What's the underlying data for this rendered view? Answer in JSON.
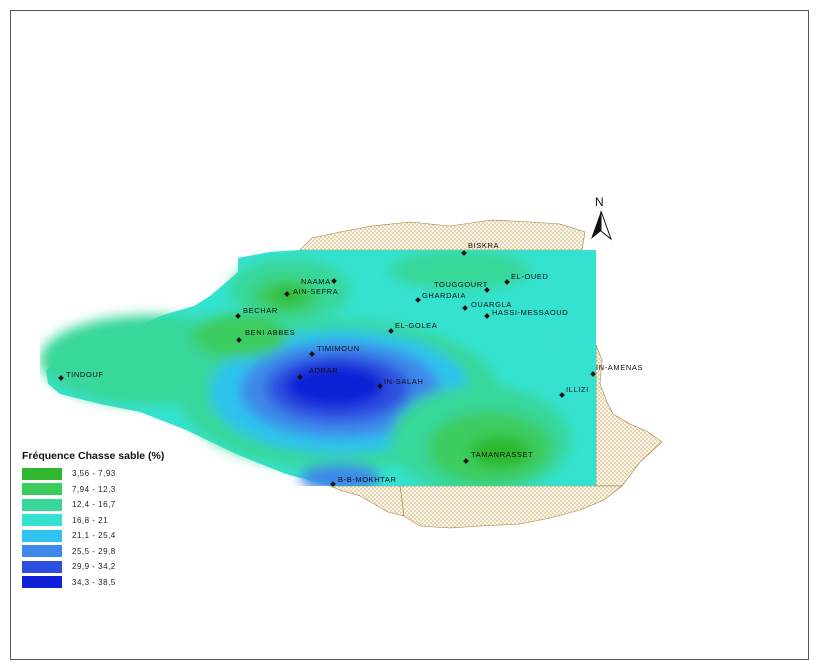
{
  "legend": {
    "title": "Fréquence Chasse sable (%)",
    "classes": [
      {
        "label": "3,56 - 7,93",
        "color": "#2fb82f"
      },
      {
        "label": "7,94 - 12,3",
        "color": "#3ccc5e"
      },
      {
        "label": "12,4 - 16,7",
        "color": "#38d79a"
      },
      {
        "label": "16,8 - 21",
        "color": "#34e2cf"
      },
      {
        "label": "21,1 - 25,4",
        "color": "#2ec3ee"
      },
      {
        "label": "25,5 - 29,8",
        "color": "#3d88e9"
      },
      {
        "label": "29,9 - 34,2",
        "color": "#2d4fe0"
      },
      {
        "label": "34,3 - 38,5",
        "color": "#1120d6"
      }
    ]
  },
  "north_arrow": {
    "letter": "N",
    "icon": "north-arrow-icon"
  },
  "cities": [
    {
      "name": "BISKRA"
    },
    {
      "name": "EL-OUED"
    },
    {
      "name": "TOUGGOURT"
    },
    {
      "name": "NAAMA"
    },
    {
      "name": "AIN-SEFRA"
    },
    {
      "name": "GHARDAIA"
    },
    {
      "name": "OUARGLA"
    },
    {
      "name": "HASSI-MESSAOUD"
    },
    {
      "name": "BECHAR"
    },
    {
      "name": "EL-GOLEA"
    },
    {
      "name": "BENI ABBES"
    },
    {
      "name": "TIMIMOUN"
    },
    {
      "name": "IN-AMENAS"
    },
    {
      "name": "TINDOUF"
    },
    {
      "name": "ADRAR"
    },
    {
      "name": "IN-SALAH"
    },
    {
      "name": "ILLIZI"
    },
    {
      "name": "TAMANRASSET"
    },
    {
      "name": "B-B-MOKHTAR"
    }
  ]
}
